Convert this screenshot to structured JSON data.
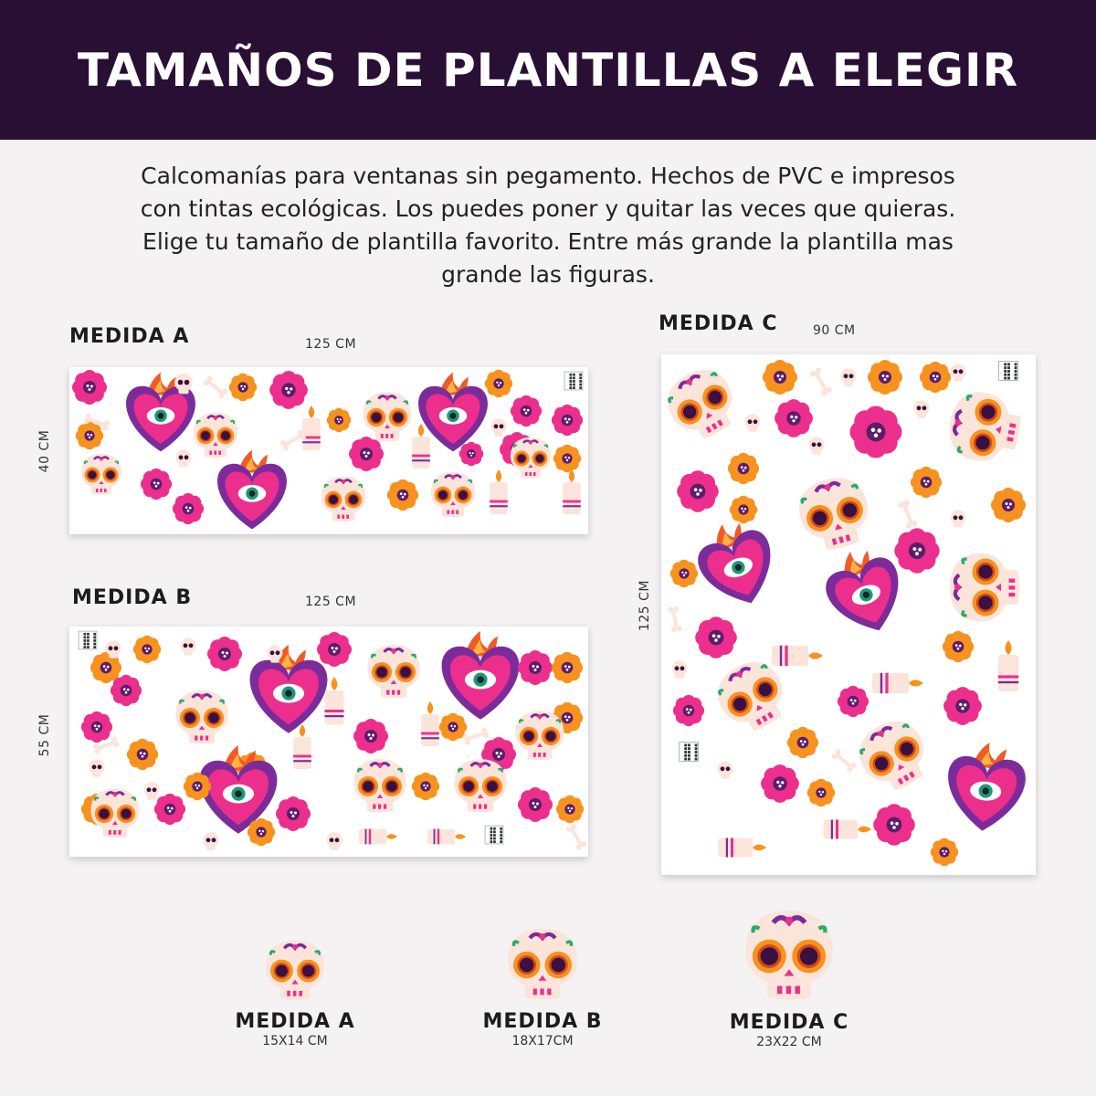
{
  "header": {
    "title": "TAMAÑOS DE PLANTILLAS A ELEGIR"
  },
  "description": "Calcomanías para ventanas sin pegamento. Hechos de PVC e impresos con tintas ecológicas. Los puedes poner y quitar las veces que quieras. Elige tu tamaño de plantilla favorito. Entre más grande la plantilla mas grande las figuras.",
  "templates": [
    {
      "label": "MEDIDA A",
      "width": "125 CM",
      "height": "40 CM"
    },
    {
      "label": "MEDIDA B",
      "width": "125 CM",
      "height": "55 CM"
    },
    {
      "label": "MEDIDA C",
      "width": "90 CM",
      "height": "125 CM"
    }
  ],
  "skull_sizes": [
    {
      "label": "MEDIDA A",
      "size": "15X14 CM"
    },
    {
      "label": "MEDIDA B",
      "size": "18X17CM"
    },
    {
      "label": "MEDIDA C",
      "size": "23X22 CM"
    }
  ],
  "colors": {
    "header_bg": "#2a0f34",
    "pink": "#ec2f8c",
    "orange": "#f7921e",
    "purple": "#7b2c9a",
    "skull": "#fbe4da",
    "flame": "#f15a24"
  },
  "icons": [
    "sugar-skull-icon",
    "flower-icon",
    "sacred-heart-icon",
    "candle-icon",
    "bone-icon",
    "small-skull-icon",
    "qr-code-icon"
  ]
}
